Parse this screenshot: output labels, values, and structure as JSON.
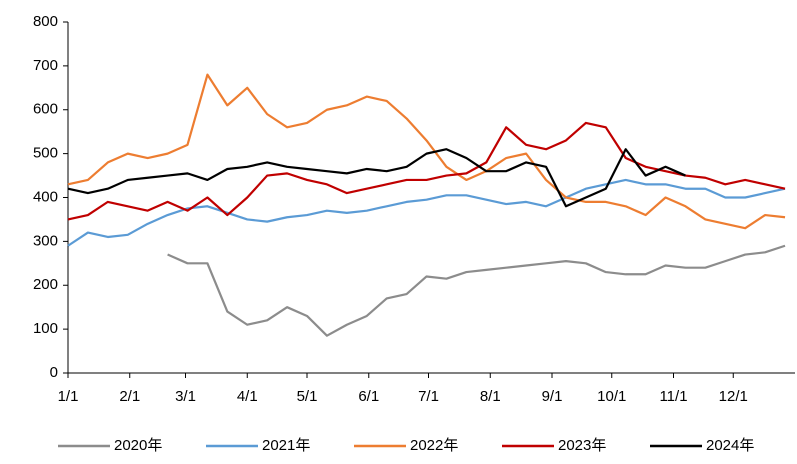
{
  "chart_data": {
    "type": "line",
    "x": [
      0,
      10,
      20,
      30,
      40,
      50,
      60,
      70,
      80,
      90,
      100,
      110,
      120,
      130,
      140,
      150,
      160,
      170,
      180,
      190,
      200,
      210,
      220,
      230,
      240,
      250,
      260,
      270,
      280,
      290,
      300,
      310,
      320,
      330,
      340,
      350,
      360
    ],
    "xlim": [
      0,
      365
    ],
    "xticks": [
      {
        "value": 0,
        "label": "1/1"
      },
      {
        "value": 31,
        "label": "2/1"
      },
      {
        "value": 59,
        "label": "3/1"
      },
      {
        "value": 90,
        "label": "4/1"
      },
      {
        "value": 120,
        "label": "5/1"
      },
      {
        "value": 151,
        "label": "6/1"
      },
      {
        "value": 181,
        "label": "7/1"
      },
      {
        "value": 212,
        "label": "8/1"
      },
      {
        "value": 243,
        "label": "9/1"
      },
      {
        "value": 273,
        "label": "10/1"
      },
      {
        "value": 304,
        "label": "11/1"
      },
      {
        "value": 334,
        "label": "12/1"
      }
    ],
    "ylim": [
      0,
      800
    ],
    "yticks": [
      0,
      100,
      200,
      300,
      400,
      500,
      600,
      700,
      800
    ],
    "grid": false,
    "series": [
      {
        "name": "2020年",
        "color": "#8c8c8c",
        "values": [
          null,
          null,
          null,
          null,
          null,
          270,
          250,
          250,
          140,
          110,
          120,
          150,
          130,
          85,
          110,
          130,
          170,
          180,
          220,
          215,
          230,
          235,
          240,
          245,
          250,
          255,
          250,
          230,
          225,
          225,
          245,
          240,
          240,
          255,
          270,
          275,
          290
        ]
      },
      {
        "name": "2021年",
        "color": "#5b9bd5",
        "values": [
          290,
          320,
          310,
          315,
          340,
          360,
          375,
          380,
          365,
          350,
          345,
          355,
          360,
          370,
          365,
          370,
          380,
          390,
          395,
          405,
          405,
          395,
          385,
          390,
          380,
          400,
          420,
          430,
          440,
          430,
          430,
          420,
          420,
          400,
          400,
          410,
          420
        ]
      },
      {
        "name": "2022年",
        "color": "#ed7d31",
        "values": [
          430,
          440,
          480,
          500,
          490,
          500,
          520,
          680,
          610,
          650,
          590,
          560,
          570,
          600,
          610,
          630,
          620,
          580,
          530,
          470,
          440,
          460,
          490,
          500,
          440,
          400,
          390,
          390,
          380,
          360,
          400,
          380,
          350,
          340,
          330,
          360,
          355
        ]
      },
      {
        "name": "2023年",
        "color": "#c00000",
        "values": [
          350,
          360,
          390,
          380,
          370,
          390,
          370,
          400,
          360,
          400,
          450,
          455,
          440,
          430,
          410,
          420,
          430,
          440,
          440,
          450,
          455,
          480,
          560,
          520,
          510,
          530,
          570,
          560,
          490,
          470,
          460,
          450,
          445,
          430,
          440,
          430,
          420
        ]
      },
      {
        "name": "2024年",
        "color": "#000000",
        "values": [
          420,
          410,
          420,
          440,
          445,
          450,
          455,
          440,
          465,
          470,
          480,
          470,
          465,
          460,
          455,
          465,
          460,
          470,
          500,
          510,
          490,
          460,
          460,
          480,
          470,
          380,
          400,
          420,
          510,
          450,
          470,
          450,
          null,
          null,
          null,
          null,
          null
        ]
      }
    ]
  }
}
